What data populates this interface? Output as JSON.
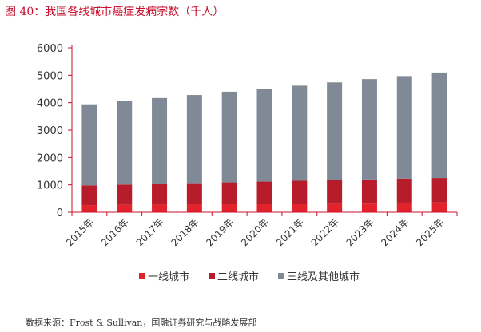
{
  "header": {
    "title": "图 40：我国各线城市癌症发病宗数（千人）"
  },
  "footer": {
    "source": "数据来源：Frost & Sullivan，国融证券研究与战略发展部"
  },
  "colors": {
    "accent": "#c8102e",
    "series": [
      "#e3232c",
      "#b71c2a",
      "#808a96"
    ],
    "axis": "#c8102e",
    "text": "#333333"
  },
  "chart_data": {
    "type": "bar",
    "stacked": true,
    "title": "我国各线城市癌症发病宗数（千人）",
    "xlabel": "",
    "ylabel": "",
    "ylim": [
      0,
      6000
    ],
    "yticks": [
      0,
      1000,
      2000,
      3000,
      4000,
      5000,
      6000
    ],
    "grid": false,
    "legend_position": "bottom",
    "categories": [
      "2015年",
      "2016年",
      "2017年",
      "2018年",
      "2019年",
      "2020年",
      "2021年",
      "2022年",
      "2023年",
      "2024年",
      "2025年"
    ],
    "series": [
      {
        "name": "一线城市",
        "values": [
          260,
          270,
          280,
          290,
          300,
          310,
          320,
          330,
          340,
          350,
          360
        ]
      },
      {
        "name": "二线城市",
        "values": [
          720,
          740,
          750,
          770,
          790,
          810,
          830,
          850,
          860,
          880,
          890
        ]
      },
      {
        "name": "三线及其他城市",
        "values": [
          2960,
          3040,
          3140,
          3220,
          3310,
          3380,
          3470,
          3560,
          3660,
          3740,
          3850
        ]
      }
    ]
  }
}
